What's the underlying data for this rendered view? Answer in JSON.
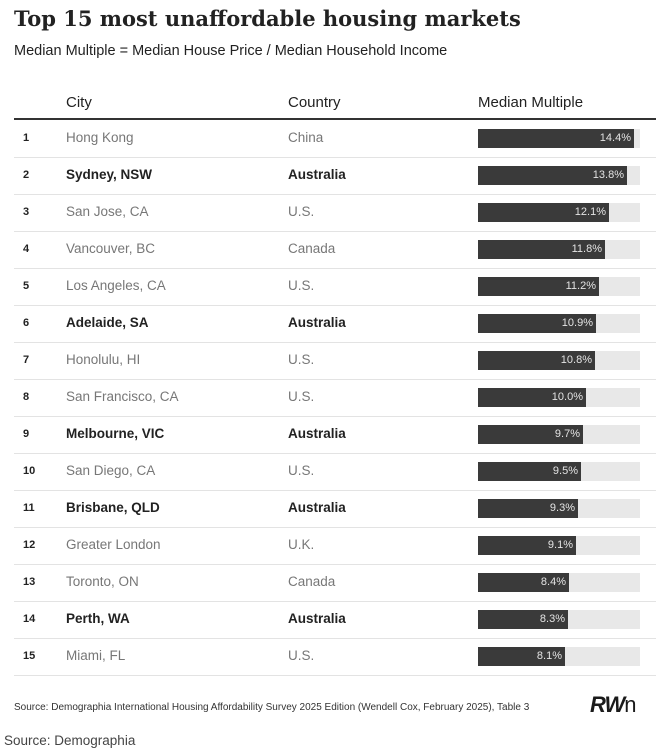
{
  "title": "Top 15 most unaffordable housing markets",
  "subtitle": "Median Multiple = Median House Price / Median Household Income",
  "headers": {
    "city": "City",
    "country": "Country",
    "multiple": "Median Multiple"
  },
  "source_note": "Source: Demographia International Housing Affordability Survey 2025 Edition (Wendell Cox, February 2025), Table 3",
  "logo_text": "RWn",
  "caption": "Source: Demographia",
  "colors": {
    "bar": "#3a3a3a",
    "track": "#e8e8e8",
    "label": "#e4e4e4"
  },
  "chart_data": {
    "type": "table",
    "title": "Top 15 most unaffordable housing markets",
    "subtitle": "Median Multiple = Median House Price / Median Household Income",
    "columns": [
      "City",
      "Country",
      "Median Multiple"
    ],
    "scale_max": 15,
    "rows": [
      {
        "rank": "1",
        "city": "Hong Kong",
        "country": "China",
        "value": 14.4,
        "label": "14.4%",
        "highlight": false
      },
      {
        "rank": "2",
        "city": "Sydney, NSW",
        "country": "Australia",
        "value": 13.8,
        "label": "13.8%",
        "highlight": true
      },
      {
        "rank": "3",
        "city": "San Jose, CA",
        "country": "U.S.",
        "value": 12.1,
        "label": "12.1%",
        "highlight": false
      },
      {
        "rank": "4",
        "city": "Vancouver, BC",
        "country": "Canada",
        "value": 11.8,
        "label": "11.8%",
        "highlight": false
      },
      {
        "rank": "5",
        "city": "Los Angeles, CA",
        "country": "U.S.",
        "value": 11.2,
        "label": "11.2%",
        "highlight": false
      },
      {
        "rank": "6",
        "city": "Adelaide, SA",
        "country": "Australia",
        "value": 10.9,
        "label": "10.9%",
        "highlight": true
      },
      {
        "rank": "7",
        "city": "Honolulu, HI",
        "country": "U.S.",
        "value": 10.8,
        "label": "10.8%",
        "highlight": false
      },
      {
        "rank": "8",
        "city": "San Francisco, CA",
        "country": "U.S.",
        "value": 10.0,
        "label": "10.0%",
        "highlight": false
      },
      {
        "rank": "9",
        "city": "Melbourne, VIC",
        "country": "Australia",
        "value": 9.7,
        "label": "9.7%",
        "highlight": true
      },
      {
        "rank": "10",
        "city": "San Diego, CA",
        "country": "U.S.",
        "value": 9.5,
        "label": "9.5%",
        "highlight": false
      },
      {
        "rank": "11",
        "city": "Brisbane, QLD",
        "country": "Australia",
        "value": 9.3,
        "label": "9.3%",
        "highlight": true
      },
      {
        "rank": "12",
        "city": "Greater London",
        "country": "U.K.",
        "value": 9.1,
        "label": "9.1%",
        "highlight": false
      },
      {
        "rank": "13",
        "city": "Toronto, ON",
        "country": "Canada",
        "value": 8.4,
        "label": "8.4%",
        "highlight": false
      },
      {
        "rank": "14",
        "city": "Perth, WA",
        "country": "Australia",
        "value": 8.3,
        "label": "8.3%",
        "highlight": true
      },
      {
        "rank": "15",
        "city": "Miami, FL",
        "country": "U.S.",
        "value": 8.1,
        "label": "8.1%",
        "highlight": false
      }
    ]
  }
}
